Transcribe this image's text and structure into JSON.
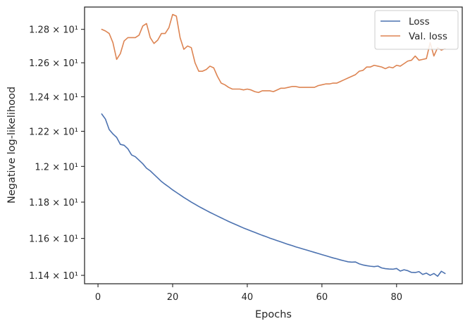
{
  "chart_data": {
    "type": "line",
    "xlabel": "Epochs",
    "ylabel": "Negative log-likelihood",
    "xlim": [
      -3.6,
      97.6
    ],
    "ylim": [
      11.355,
      12.935
    ],
    "y_scale": "log",
    "grid": false,
    "legend_position": "top-right",
    "x_ticks": [
      0,
      20,
      40,
      60,
      80
    ],
    "x_tick_labels": [
      "0",
      "20",
      "40",
      "60",
      "80"
    ],
    "y_ticks": [
      11.4,
      11.6,
      11.8,
      12.0,
      12.2,
      12.4,
      12.6,
      12.8
    ],
    "y_tick_labels": [
      "1.14 × 10¹",
      "1.16 × 10¹",
      "1.18 × 10¹",
      "1.2 × 10¹",
      "1.22 × 10¹",
      "1.24 × 10¹",
      "1.26 × 10¹",
      "1.28 × 10¹"
    ],
    "series": [
      {
        "name": "Loss",
        "color": "#4c72b0",
        "x": [
          1,
          2,
          3,
          4,
          5,
          6,
          7,
          8,
          9,
          10,
          11,
          12,
          13,
          14,
          15,
          16,
          17,
          18,
          19,
          20,
          21,
          22,
          23,
          24,
          25,
          26,
          27,
          28,
          29,
          30,
          31,
          32,
          33,
          34,
          35,
          36,
          37,
          38,
          39,
          40,
          41,
          42,
          43,
          44,
          45,
          46,
          47,
          48,
          49,
          50,
          51,
          52,
          53,
          54,
          55,
          56,
          57,
          58,
          59,
          60,
          61,
          62,
          63,
          64,
          65,
          66,
          67,
          68,
          69,
          70,
          71,
          72,
          73,
          74,
          75,
          76,
          77,
          78,
          79,
          80,
          81,
          82,
          83,
          84,
          85,
          86,
          87,
          88,
          89,
          90,
          91,
          92,
          93
        ],
        "values": [
          12.3,
          12.27,
          12.21,
          12.185,
          12.165,
          12.125,
          12.12,
          12.1,
          12.065,
          12.055,
          12.035,
          12.015,
          11.99,
          11.975,
          11.955,
          11.935,
          11.915,
          11.899,
          11.884,
          11.868,
          11.854,
          11.84,
          11.826,
          11.813,
          11.8,
          11.788,
          11.776,
          11.765,
          11.754,
          11.743,
          11.733,
          11.723,
          11.713,
          11.703,
          11.693,
          11.684,
          11.675,
          11.666,
          11.657,
          11.649,
          11.641,
          11.633,
          11.625,
          11.617,
          11.61,
          11.602,
          11.595,
          11.588,
          11.581,
          11.574,
          11.567,
          11.561,
          11.554,
          11.548,
          11.542,
          11.536,
          11.53,
          11.524,
          11.518,
          11.512,
          11.506,
          11.5,
          11.494,
          11.489,
          11.483,
          11.478,
          11.473,
          11.471,
          11.472,
          11.462,
          11.456,
          11.452,
          11.449,
          11.447,
          11.45,
          11.44,
          11.436,
          11.434,
          11.433,
          11.437,
          11.423,
          11.43,
          11.425,
          11.416,
          11.415,
          11.42,
          11.405,
          11.412,
          11.4,
          11.41,
          11.395,
          11.422,
          11.41
        ]
      },
      {
        "name": "Val. loss",
        "color": "#dd8452",
        "x": [
          1,
          2,
          3,
          4,
          5,
          6,
          7,
          8,
          9,
          10,
          11,
          12,
          13,
          14,
          15,
          16,
          17,
          18,
          19,
          20,
          21,
          22,
          23,
          24,
          25,
          26,
          27,
          28,
          29,
          30,
          31,
          32,
          33,
          34,
          35,
          36,
          37,
          38,
          39,
          40,
          41,
          42,
          43,
          44,
          45,
          46,
          47,
          48,
          49,
          50,
          51,
          52,
          53,
          54,
          55,
          56,
          57,
          58,
          59,
          60,
          61,
          62,
          63,
          64,
          65,
          66,
          67,
          68,
          69,
          70,
          71,
          72,
          73,
          74,
          75,
          76,
          77,
          78,
          79,
          80,
          81,
          82,
          83,
          84,
          85,
          86,
          87,
          88,
          89,
          90,
          91,
          92,
          93
        ],
        "values": [
          12.8,
          12.79,
          12.775,
          12.72,
          12.62,
          12.655,
          12.73,
          12.75,
          12.75,
          12.75,
          12.765,
          12.82,
          12.835,
          12.75,
          12.715,
          12.735,
          12.775,
          12.775,
          12.81,
          12.89,
          12.88,
          12.75,
          12.68,
          12.7,
          12.69,
          12.6,
          12.55,
          12.55,
          12.56,
          12.58,
          12.57,
          12.52,
          12.48,
          12.47,
          12.455,
          12.445,
          12.445,
          12.445,
          12.44,
          12.445,
          12.44,
          12.43,
          12.425,
          12.435,
          12.435,
          12.435,
          12.43,
          12.44,
          12.45,
          12.45,
          12.455,
          12.46,
          12.46,
          12.455,
          12.455,
          12.455,
          12.455,
          12.455,
          12.465,
          12.47,
          12.475,
          12.475,
          12.48,
          12.48,
          12.49,
          12.5,
          12.51,
          12.52,
          12.53,
          12.55,
          12.555,
          12.575,
          12.575,
          12.585,
          12.58,
          12.575,
          12.565,
          12.575,
          12.57,
          12.585,
          12.58,
          12.595,
          12.61,
          12.615,
          12.64,
          12.615,
          12.62,
          12.625,
          12.72,
          12.64,
          12.69,
          12.675,
          12.685
        ]
      }
    ]
  }
}
